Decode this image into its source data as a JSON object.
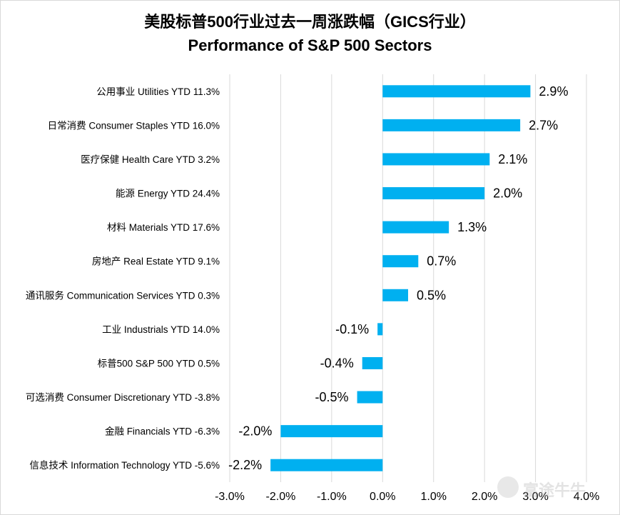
{
  "chart_data": {
    "type": "bar",
    "orientation": "horizontal",
    "title": "美股标普500行业过去一周涨跌幅（GICS行业）",
    "subtitle": "Performance of S&P 500 Sectors",
    "categories": [
      "公用事业 Utilities YTD 11.3%",
      "日常消费 Consumer Staples YTD 16.0%",
      "医疗保健 Health Care YTD 3.2%",
      "能源 Energy YTD 24.4%",
      "材料 Materials YTD 17.6%",
      "房地产 Real Estate YTD 9.1%",
      "通讯服务 Communication Services YTD 0.3%",
      "工业 Industrials YTD 14.0%",
      "标普500 S&P 500 YTD 0.5%",
      "可选消费 Consumer Discretionary YTD -3.8%",
      "金融 Financials YTD -6.3%",
      "信息技术 Information Technology YTD -5.6%"
    ],
    "values": [
      2.9,
      2.7,
      2.1,
      2.0,
      1.3,
      0.7,
      0.5,
      -0.1,
      -0.4,
      -0.5,
      -2.0,
      -2.2
    ],
    "value_labels": [
      "2.9%",
      "2.7%",
      "2.1%",
      "2.0%",
      "1.3%",
      "0.7%",
      "0.5%",
      "-0.1%",
      "-0.4%",
      "-0.5%",
      "-2.0%",
      "-2.2%"
    ],
    "xlim": [
      -3.0,
      4.0
    ],
    "xticks": [
      -3.0,
      -2.0,
      -1.0,
      0.0,
      1.0,
      2.0,
      3.0,
      4.0
    ],
    "xtick_labels": [
      "-3.0%",
      "-2.0%",
      "-1.0%",
      "0.0%",
      "1.0%",
      "2.0%",
      "3.0%",
      "4.0%"
    ],
    "xlabel": "",
    "ylabel": "",
    "grid": "vertical",
    "legend": "none",
    "bar_color": "#00b0f0",
    "grid_color": "#d9d9d9"
  },
  "watermark": {
    "text": "富途牛牛",
    "icon": "futu-logo-icon"
  }
}
